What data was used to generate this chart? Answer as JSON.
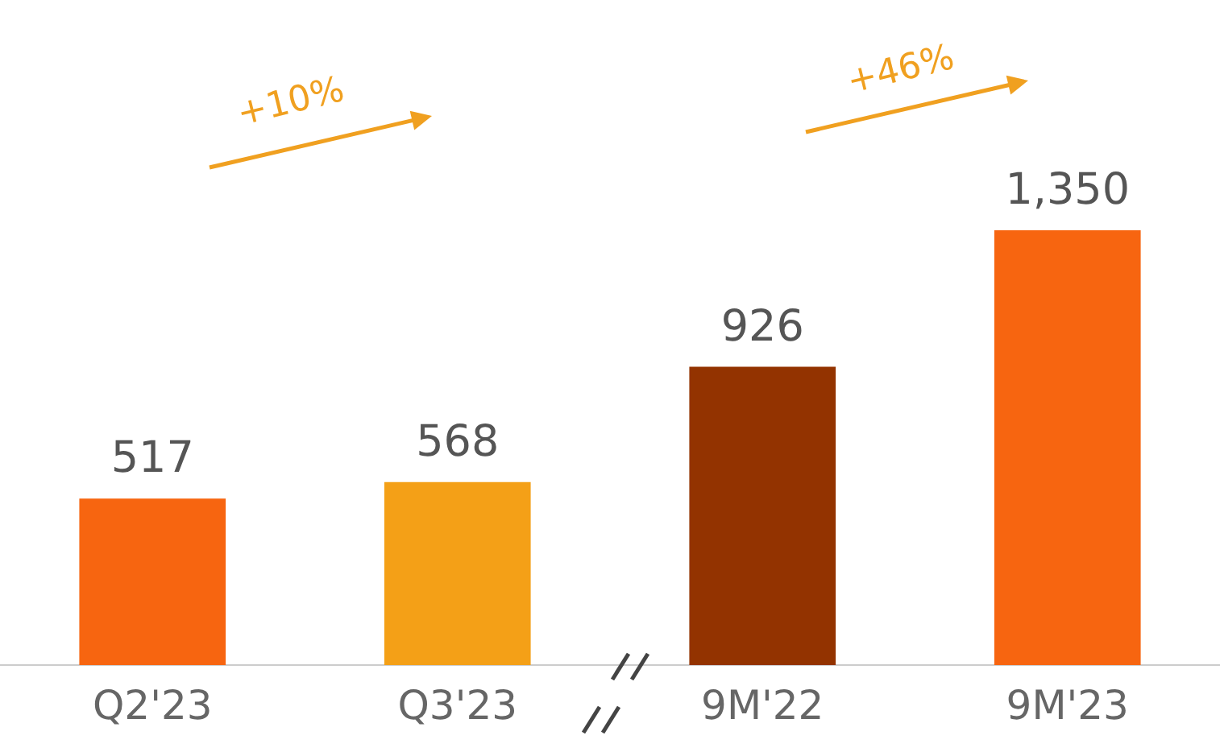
{
  "chart_data": {
    "type": "bar",
    "categories": [
      "Q2'23",
      "Q3'23",
      "9M'22",
      "9M'23"
    ],
    "values": [
      517,
      568,
      926,
      1350
    ],
    "colors": [
      "#f76510",
      "#f4a017",
      "#933300",
      "#f76510"
    ],
    "value_labels": [
      "517",
      "568",
      "926",
      "1,350"
    ],
    "annotations": [
      "+10%",
      "+46%"
    ],
    "tick_labels": "x",
    "grid": false,
    "legend": false
  }
}
